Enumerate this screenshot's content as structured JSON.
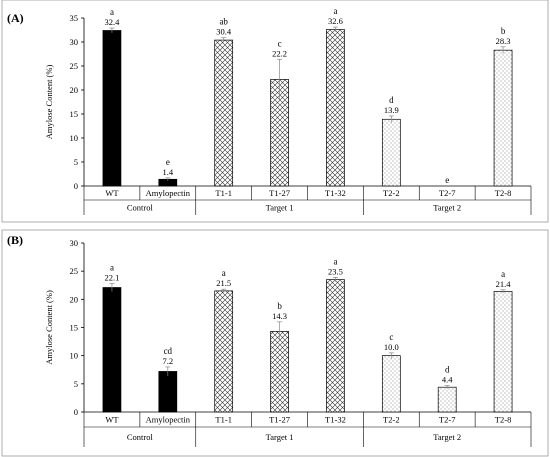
{
  "chart_data": [
    {
      "type": "bar",
      "panel_label": "(A)",
      "ylabel": "Amylose Content (%)",
      "ylim": [
        0,
        35
      ],
      "yticks": [
        0,
        5,
        10,
        15,
        20,
        25,
        30,
        35
      ],
      "categories": [
        "WT",
        "Amylopectin",
        "T1-1",
        "T1-27",
        "T1-32",
        "T2-2",
        "T2-7",
        "T2-8"
      ],
      "values": [
        32.4,
        1.4,
        30.4,
        22.2,
        32.6,
        13.9,
        0,
        28.3
      ],
      "value_labels": [
        "32.4",
        "1.4",
        "30.4",
        "22.2",
        "32.6",
        "13.9",
        "",
        "28.3"
      ],
      "errors": [
        0.5,
        0.3,
        0.5,
        4.2,
        0.5,
        0.7,
        0,
        0.7
      ],
      "letters": [
        "a",
        "e",
        "ab",
        "c",
        "a",
        "d",
        "e",
        "b"
      ],
      "groups": [
        {
          "label": "Control",
          "start": 0,
          "end": 1
        },
        {
          "label": "Target 1",
          "start": 2,
          "end": 4
        },
        {
          "label": "Target 2",
          "start": 5,
          "end": 7
        }
      ],
      "fills": [
        "solid",
        "solid",
        "crosshatch",
        "crosshatch",
        "crosshatch",
        "dots",
        "dots",
        "dots"
      ]
    },
    {
      "type": "bar",
      "panel_label": "(B)",
      "ylabel": "Amylose Content (%)",
      "ylim": [
        0,
        30
      ],
      "yticks": [
        0,
        5,
        10,
        15,
        20,
        25,
        30
      ],
      "categories": [
        "WT",
        "Amylopectin",
        "T1-1",
        "T1-27",
        "T1-32",
        "T2-2",
        "T2-7",
        "T2-8"
      ],
      "values": [
        22.1,
        7.2,
        21.5,
        14.3,
        23.5,
        10.0,
        4.4,
        21.4
      ],
      "value_labels": [
        "22.1",
        "7.2",
        "21.5",
        "14.3",
        "23.5",
        "10.0",
        "4.4",
        "21.4"
      ],
      "errors": [
        0.7,
        0.8,
        0.3,
        1.7,
        0.4,
        0.5,
        0.3,
        0.3
      ],
      "letters": [
        "a",
        "cd",
        "a",
        "b",
        "a",
        "c",
        "d",
        "a"
      ],
      "groups": [
        {
          "label": "Control",
          "start": 0,
          "end": 1
        },
        {
          "label": "Target 1",
          "start": 2,
          "end": 4
        },
        {
          "label": "Target 2",
          "start": 5,
          "end": 7
        }
      ],
      "fills": [
        "solid",
        "solid",
        "crosshatch",
        "crosshatch",
        "crosshatch",
        "dots",
        "dots",
        "dots"
      ]
    }
  ]
}
